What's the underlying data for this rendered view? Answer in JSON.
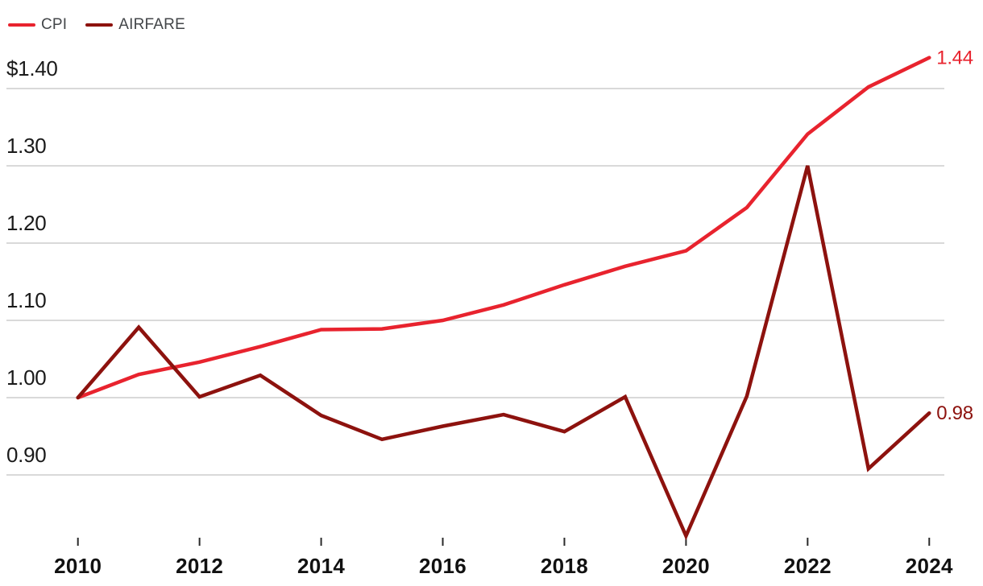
{
  "legend": {
    "items": [
      {
        "label": "CPI",
        "color": "#e8232e"
      },
      {
        "label": "AIRFARE",
        "color": "#8d120e"
      }
    ]
  },
  "chart_data": {
    "type": "line",
    "title": "",
    "xlabel": "",
    "ylabel": "",
    "x": [
      2010,
      2011,
      2012,
      2013,
      2014,
      2015,
      2016,
      2017,
      2018,
      2019,
      2020,
      2021,
      2022,
      2023,
      2024
    ],
    "series": [
      {
        "name": "CPI",
        "color": "#e8232e",
        "values": [
          1.0,
          1.03,
          1.046,
          1.066,
          1.088,
          1.089,
          1.1,
          1.12,
          1.146,
          1.17,
          1.19,
          1.246,
          1.341,
          1.402,
          1.44
        ],
        "end_label": "1.44"
      },
      {
        "name": "AIRFARE",
        "color": "#8d120e",
        "values": [
          1.0,
          1.091,
          1.001,
          1.029,
          0.977,
          0.946,
          0.963,
          0.978,
          0.956,
          1.001,
          0.821,
          1.002,
          1.3,
          0.908,
          0.98
        ],
        "end_label": "0.98"
      }
    ],
    "y_axis": {
      "unit_prefix_on_top_tick": "$",
      "ticks": [
        {
          "label": "$1.40",
          "value": 1.4
        },
        {
          "label": "1.30",
          "value": 1.3
        },
        {
          "label": "1.20",
          "value": 1.2
        },
        {
          "label": "1.10",
          "value": 1.1
        },
        {
          "label": "1.00",
          "value": 1.0
        },
        {
          "label": "0.90",
          "value": 0.9
        }
      ]
    },
    "x_axis": {
      "ticks": [
        {
          "label": "2010",
          "value": 2010
        },
        {
          "label": "2012",
          "value": 2012
        },
        {
          "label": "2014",
          "value": 2014
        },
        {
          "label": "2016",
          "value": 2016
        },
        {
          "label": "2018",
          "value": 2018
        },
        {
          "label": "2020",
          "value": 2020
        },
        {
          "label": "2022",
          "value": 2022
        },
        {
          "label": "2024",
          "value": 2024
        }
      ]
    },
    "xlim": [
      2010,
      2024
    ],
    "ylim": [
      0.82,
      1.44
    ],
    "grid": "horizontal",
    "legend_position": "top-left"
  },
  "colors": {
    "background": "#ffffff",
    "gridline": "#d9d9d9",
    "tick_mark": "#2a2a2a",
    "y_label": "#1a1a1a",
    "x_label": "#111111",
    "legend_text": "#434649"
  }
}
